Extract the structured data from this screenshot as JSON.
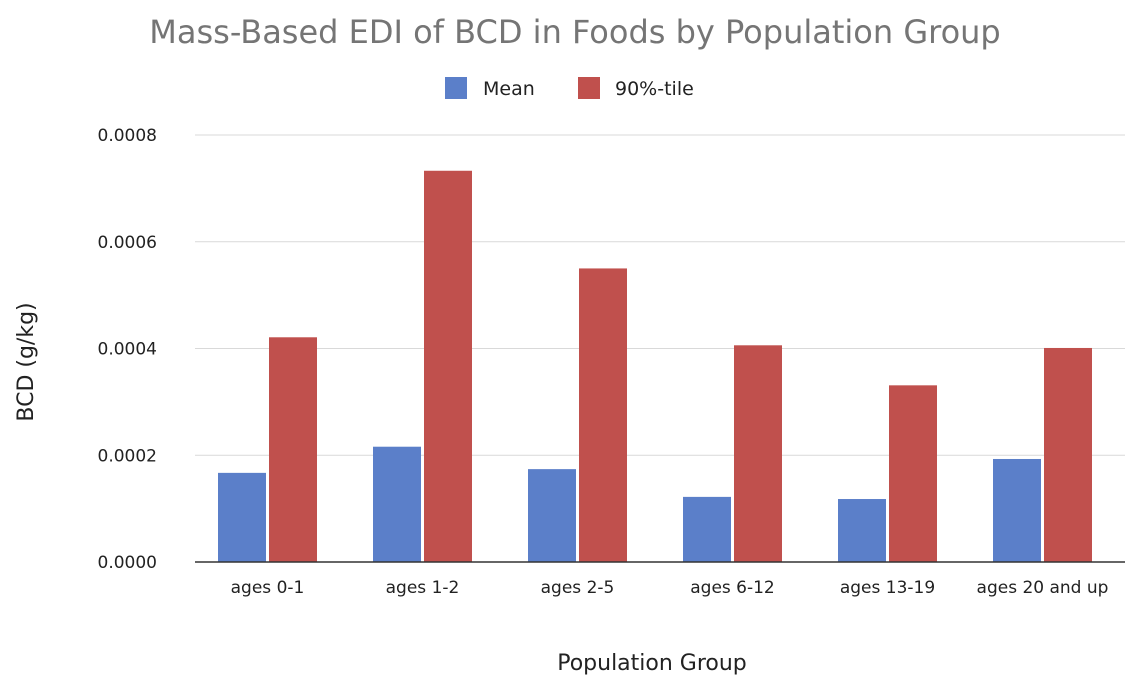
{
  "chart_data": {
    "type": "bar",
    "title": "Mass-Based EDI of BCD in Foods by Population Group",
    "xlabel": "Population Group",
    "ylabel": "BCD (g/kg)",
    "categories": [
      "ages 0-1",
      "ages 1-2",
      "ages 2-5",
      "ages 6-12",
      "ages 13-19",
      "ages 20 and up"
    ],
    "series": [
      {
        "name": "Mean",
        "color": "#5b7fc9",
        "values": [
          0.000167,
          0.000216,
          0.000174,
          0.000122,
          0.000118,
          0.000193
        ]
      },
      {
        "name": "90%-tile",
        "color": "#c0504d",
        "values": [
          0.000421,
          0.000733,
          0.00055,
          0.000406,
          0.000331,
          0.000401
        ]
      }
    ],
    "ylim": [
      0,
      0.0008
    ],
    "yticks": [
      "0.0000",
      "0.0002",
      "0.0004",
      "0.0006",
      "0.0008"
    ],
    "ytick_values": [
      0,
      0.0002,
      0.0004,
      0.0006,
      0.0008
    ],
    "grid": true,
    "legend_position": "top"
  }
}
